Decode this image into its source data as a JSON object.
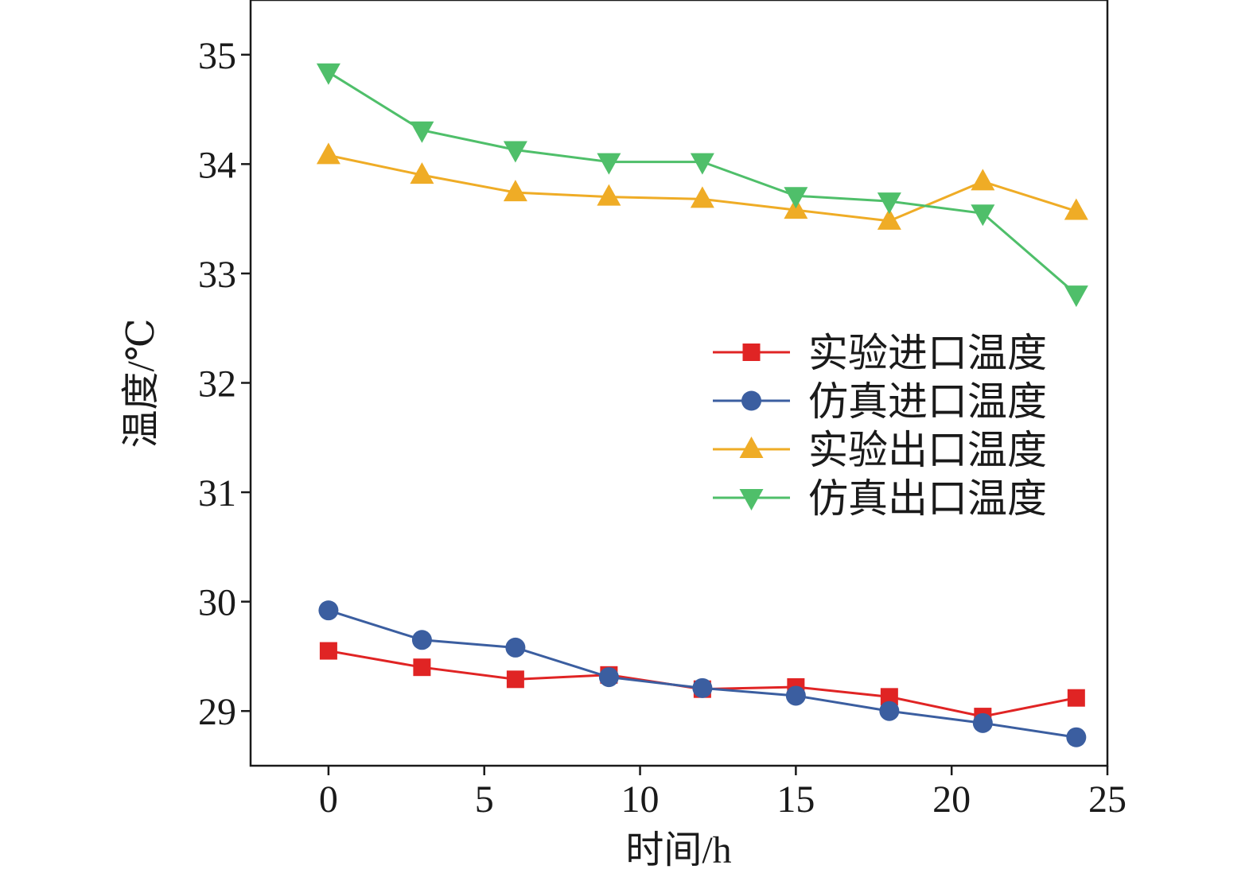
{
  "chart_data": {
    "type": "line",
    "xlabel": "时间/h",
    "ylabel": "温度/℃",
    "xlim": [
      -2.5,
      25
    ],
    "ylim": [
      28.5,
      35.5
    ],
    "xticks": [
      0,
      5,
      10,
      15,
      20,
      25
    ],
    "yticks": [
      29,
      30,
      31,
      32,
      33,
      34,
      35
    ],
    "x": [
      0,
      3,
      6,
      9,
      12,
      15,
      18,
      21,
      24
    ],
    "grid": false,
    "legend_position": "right-middle",
    "series": [
      {
        "name": "实验进口温度",
        "color": "#e02424",
        "marker": "square",
        "values": [
          29.55,
          29.4,
          29.29,
          29.33,
          29.2,
          29.22,
          29.13,
          28.95,
          29.12
        ]
      },
      {
        "name": "仿真进口温度",
        "color": "#3b5ea0",
        "marker": "circle",
        "values": [
          29.92,
          29.65,
          29.58,
          29.31,
          29.21,
          29.14,
          29.0,
          28.89,
          28.76
        ]
      },
      {
        "name": "实验出口温度",
        "color": "#efac26",
        "marker": "triangle-up",
        "values": [
          34.08,
          33.9,
          33.74,
          33.7,
          33.68,
          33.58,
          33.48,
          33.84,
          33.57
        ]
      },
      {
        "name": "仿真出口温度",
        "color": "#4fbf6a",
        "marker": "triangle-down",
        "values": [
          34.84,
          34.31,
          34.13,
          34.02,
          34.02,
          33.71,
          33.66,
          33.55,
          32.81
        ]
      }
    ]
  }
}
